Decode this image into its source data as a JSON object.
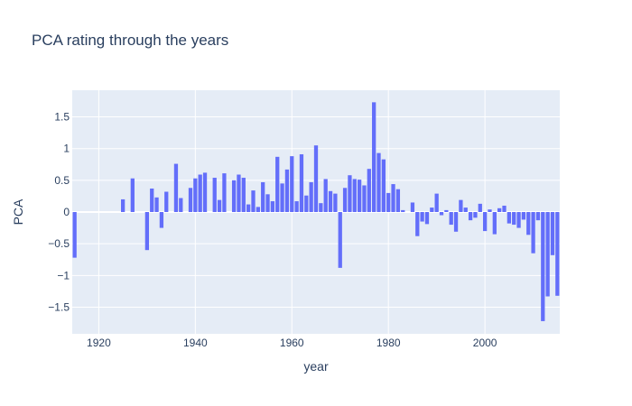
{
  "chart_data": {
    "type": "bar",
    "title": "PCA rating through the years",
    "xlabel": "year",
    "ylabel": "PCA",
    "xlim": [
      1914.5,
      2015.5
    ],
    "ylim": [
      -1.92,
      1.92
    ],
    "x_ticks": [
      1920,
      1940,
      1960,
      1980,
      2000
    ],
    "x_tick_labels": [
      "1920",
      "1940",
      "1960",
      "1980",
      "2000"
    ],
    "y_ticks": [
      1.5,
      1,
      0.5,
      0,
      -0.5,
      -1,
      -1.5
    ],
    "y_tick_labels": [
      "1.5",
      "1",
      "0.5",
      "0",
      "−0.5",
      "−1",
      "−1.5"
    ],
    "grid": true,
    "bar_color": "#636efa",
    "plot_bg": "#e5ecf6",
    "x": [
      1915,
      1925,
      1927,
      1930,
      1931,
      1932,
      1933,
      1934,
      1936,
      1937,
      1939,
      1940,
      1941,
      1942,
      1944,
      1945,
      1946,
      1948,
      1949,
      1950,
      1951,
      1952,
      1953,
      1954,
      1955,
      1956,
      1957,
      1958,
      1959,
      1960,
      1961,
      1962,
      1963,
      1964,
      1965,
      1966,
      1967,
      1968,
      1969,
      1970,
      1971,
      1972,
      1973,
      1974,
      1975,
      1976,
      1977,
      1978,
      1979,
      1980,
      1981,
      1982,
      1983,
      1985,
      1986,
      1987,
      1988,
      1989,
      1990,
      1991,
      1992,
      1993,
      1994,
      1995,
      1996,
      1997,
      1998,
      1999,
      2000,
      2001,
      2002,
      2003,
      2004,
      2005,
      2006,
      2007,
      2008,
      2009,
      2010,
      2011,
      2012,
      2013,
      2014,
      2015
    ],
    "values": [
      -0.72,
      0.2,
      0.53,
      -0.6,
      0.37,
      0.23,
      -0.25,
      0.32,
      0.76,
      0.22,
      0.38,
      0.53,
      0.59,
      0.62,
      0.54,
      0.19,
      0.61,
      0.5,
      0.59,
      0.54,
      0.12,
      0.34,
      0.08,
      0.47,
      0.28,
      0.17,
      0.87,
      0.45,
      0.67,
      0.88,
      0.17,
      0.91,
      0.26,
      0.47,
      1.05,
      0.14,
      0.52,
      0.33,
      0.29,
      -0.88,
      0.38,
      0.58,
      0.52,
      0.51,
      0.42,
      0.68,
      1.73,
      0.93,
      0.83,
      0.3,
      0.44,
      0.36,
      0.03,
      0.15,
      -0.38,
      -0.15,
      -0.19,
      0.07,
      0.29,
      -0.05,
      0.03,
      -0.2,
      -0.31,
      0.19,
      0.07,
      -0.13,
      -0.09,
      0.13,
      -0.3,
      0.04,
      -0.35,
      0.06,
      0.1,
      -0.18,
      -0.2,
      -0.25,
      -0.12,
      -0.36,
      -0.65,
      -0.13,
      -1.72,
      -1.33,
      -0.68,
      -1.32
    ]
  }
}
